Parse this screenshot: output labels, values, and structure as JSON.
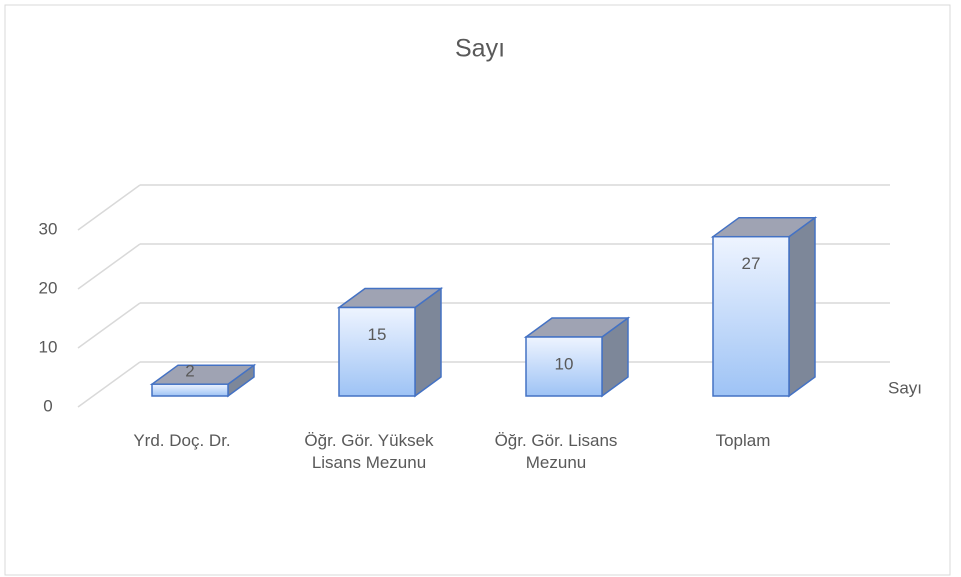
{
  "chart_data": {
    "type": "bar3d",
    "title": "Sayı",
    "categories": [
      "Yrd. Doç. Dr.",
      "Öğr. Gör. Yüksek Lisans Mezunu",
      "Öğr. Gör. Lisans Mezunu",
      "Toplam"
    ],
    "series": [
      {
        "name": "Sayı",
        "color": "#4472c4",
        "values": [
          2,
          15,
          10,
          27
        ]
      }
    ],
    "ylim": [
      0,
      30
    ],
    "yticks": [
      0,
      10,
      20,
      30
    ],
    "grid": true,
    "legend": "right"
  }
}
